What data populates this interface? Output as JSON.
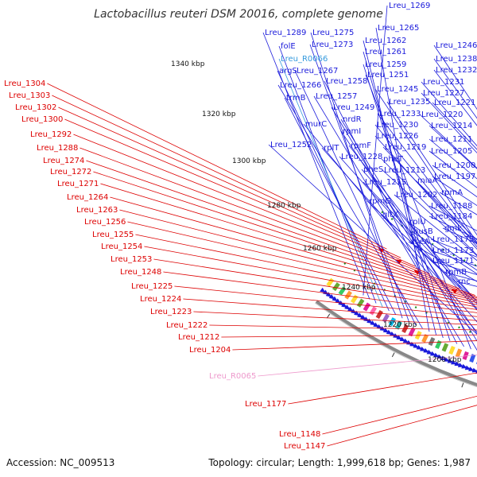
{
  "title": "Lactobacillus reuteri DSM 20016, complete genome",
  "footer": {
    "accession": "Accession: NC_009513",
    "topology": "Topology: circular; Length: 1,999,618 bp; Genes: 1,987"
  },
  "colors": {
    "forward": "#1a1adb",
    "reverse": "#dd0000",
    "rna_blue": "#3399dd",
    "rna_pink": "#ee99cc",
    "axis": "#888888",
    "dots": "#228b22"
  },
  "ticks": [
    "1340 kbp",
    "1320 kbp",
    "1300 kbp",
    "1280 kbp",
    "1260 kbp",
    "1240 kbp",
    "1220 kbp",
    "1200 kbp"
  ],
  "right_labels": [
    "Lreu_1269",
    "Lreu_1289",
    "folE",
    "Lreu_R0066",
    "argS",
    "trmB",
    "Lreu_1275",
    "Lreu_1273",
    "Lreu_1267",
    "Lreu_1266",
    "Lreu_1265",
    "Lreu_1262",
    "Lreu_1261",
    "Lreu_1259",
    "Lreu_1258",
    "Lreu_1257",
    "Lreu_1251",
    "Lreu_1249",
    "nrdR",
    "rpmI",
    "murC",
    "Lreu_1252",
    "rplT",
    "rpmF",
    "Lreu_1228",
    "pheS",
    "Lreu_1215",
    "rpmG",
    "gltX",
    "Lreu_1245",
    "Lreu_1235",
    "Lreu_1233",
    "Lreu_1230",
    "Lreu_1226",
    "pheT",
    "Lreu_1219",
    "Lreu_1213",
    "miaA",
    "Lreu_1202",
    "rplU",
    "nusB",
    "xseA",
    "Lreu_1246",
    "Lreu_1238",
    "Lreu_1232",
    "Lreu_1231",
    "Lreu_1227",
    "Lreu_1221",
    "Lreu_1220",
    "Lreu_1214",
    "Lreu_1211",
    "Lreu_1205",
    "Lreu_1200",
    "Lreu_1197",
    "rpmA",
    "Lreu_1188",
    "Lreu_1184",
    "gmk",
    "Lreu_1175",
    "Lreu_1173",
    "Lreu_1171",
    "rpmB",
    "rnc"
  ],
  "left_labels": [
    "Lreu_1304",
    "Lreu_1303",
    "Lreu_1302",
    "Lreu_1300",
    "Lreu_1292",
    "Lreu_1288",
    "Lreu_1274",
    "Lreu_1272",
    "Lreu_1271",
    "Lreu_1264",
    "Lreu_1263",
    "Lreu_1256",
    "Lreu_1255",
    "Lreu_1254",
    "Lreu_1253",
    "Lreu_1248",
    "Lreu_1225",
    "Lreu_1224",
    "Lreu_1223",
    "Lreu_1222",
    "Lreu_1212",
    "Lreu_1204",
    "Lreu_R0065",
    "Lreu_1177",
    "Lreu_1148",
    "Lreu_1147"
  ]
}
